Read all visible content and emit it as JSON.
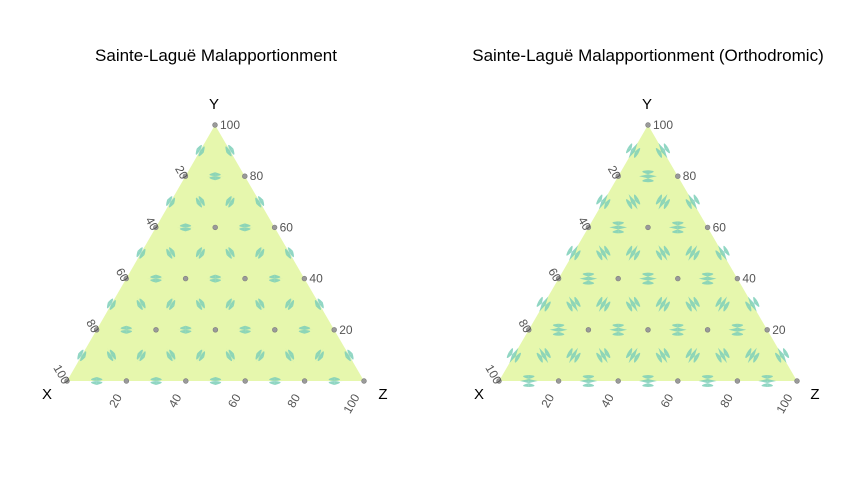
{
  "colors": {
    "fill": "#e6f7ad",
    "boundary": "#7ccfb8",
    "point": "#9a9a9a",
    "tick_text": "#555555"
  },
  "chart_data": [
    {
      "type": "ternary",
      "title": "Sainte-Laguë Malapportionment",
      "corner_labels": {
        "x": "X",
        "y": "Y",
        "z": "Z"
      },
      "scale": 100,
      "ticks": [
        20,
        40,
        60,
        80,
        100
      ],
      "tick_labels": {
        "bottom": [
          "20",
          "40",
          "60",
          "80",
          "100"
        ],
        "left": [
          "20",
          "40",
          "60",
          "80",
          "100"
        ],
        "right": [
          "20",
          "40",
          "60",
          "80",
          "100"
        ]
      },
      "grid": false,
      "points_step": 20,
      "boundary_style": "straight",
      "legend": "none"
    },
    {
      "type": "ternary",
      "title": "Sainte-Laguë Malapportionment (Orthodromic)",
      "corner_labels": {
        "x": "X",
        "y": "Y",
        "z": "Z"
      },
      "scale": 100,
      "ticks": [
        20,
        40,
        60,
        80,
        100
      ],
      "tick_labels": {
        "bottom": [
          "20",
          "40",
          "60",
          "80",
          "100"
        ],
        "left": [
          "20",
          "40",
          "60",
          "80",
          "100"
        ],
        "right": [
          "20",
          "40",
          "60",
          "80",
          "100"
        ]
      },
      "grid": false,
      "points_step": 20,
      "boundary_style": "curved",
      "legend": "none"
    }
  ]
}
